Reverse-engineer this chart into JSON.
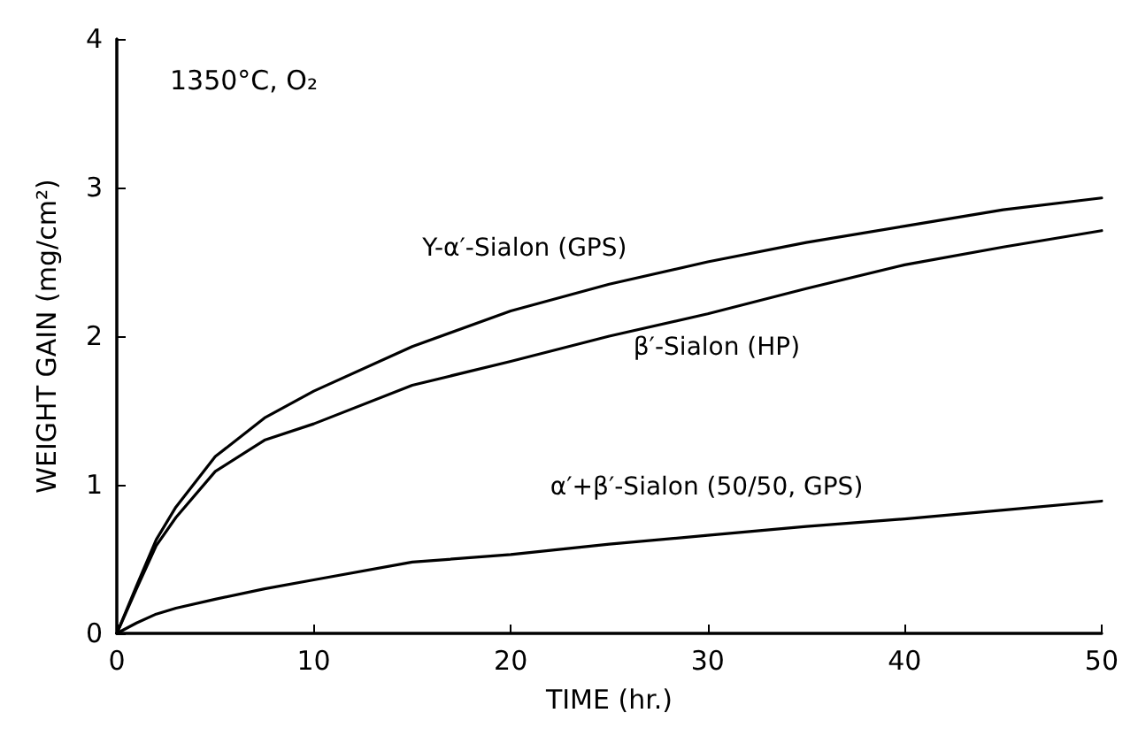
{
  "chart_data": {
    "type": "line",
    "xlabel": "TIME (hr.)",
    "ylabel": "WEIGHT GAIN (mg/cm²)",
    "x": [
      0,
      1,
      2,
      3,
      5,
      7.5,
      10,
      15,
      20,
      25,
      30,
      35,
      40,
      45,
      50
    ],
    "series": [
      {
        "name": "Y-α′-Sialon (GPS)",
        "color": "#000000",
        "values": [
          0,
          0.32,
          0.63,
          0.85,
          1.19,
          1.45,
          1.63,
          1.93,
          2.17,
          2.35,
          2.5,
          2.63,
          2.74,
          2.85,
          2.93
        ]
      },
      {
        "name": "β′-Sialon (HP)",
        "color": "#000000",
        "values": [
          0,
          0.3,
          0.59,
          0.78,
          1.09,
          1.3,
          1.41,
          1.67,
          1.83,
          2.0,
          2.15,
          2.32,
          2.48,
          2.6,
          2.71
        ]
      },
      {
        "name": "α′+β′-Sialon (50/50, GPS)",
        "color": "#000000",
        "values": [
          0,
          0.07,
          0.13,
          0.17,
          0.23,
          0.3,
          0.36,
          0.48,
          0.53,
          0.6,
          0.66,
          0.72,
          0.77,
          0.83,
          0.89
        ]
      }
    ],
    "xlim": [
      0,
      50
    ],
    "xticks": [
      0,
      10,
      20,
      30,
      40,
      50
    ],
    "ylim": [
      0,
      4
    ],
    "yticks": [
      0,
      1,
      2,
      3,
      4
    ],
    "grid": false,
    "marker": "none",
    "line_style": "solid",
    "annotations": [
      "1350°C, O₂"
    ]
  }
}
